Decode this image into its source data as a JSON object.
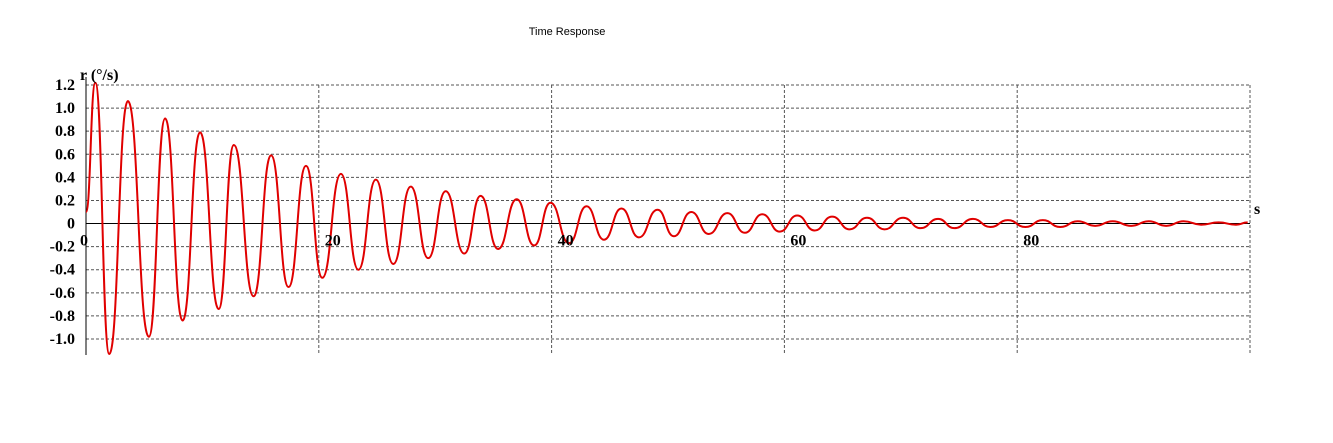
{
  "chart_data": {
    "type": "line",
    "title": "Time Response",
    "xlabel": "s",
    "ylabel": "r (°/s)",
    "xlim": [
      0,
      100
    ],
    "ylim": [
      -1.1,
      1.2
    ],
    "xticks": [
      "0",
      "20",
      "40",
      "60",
      "80"
    ],
    "xtick_values": [
      0,
      20,
      40,
      60,
      80
    ],
    "yticks": [
      "1.2",
      "1.0",
      "0.8",
      "0.6",
      "0.4",
      "0.2",
      "0",
      "-0.2",
      "-0.4",
      "-0.6",
      "-0.8",
      "-1.0"
    ],
    "ytick_values": [
      1.2,
      1.0,
      0.8,
      0.6,
      0.4,
      0.2,
      0,
      -0.2,
      -0.4,
      -0.6,
      -0.8,
      -1.0
    ],
    "grid": true,
    "series": [
      {
        "color": "#e00000",
        "x": [
          0,
          0.8,
          2.0,
          3.6,
          5.4,
          6.8,
          8.3,
          9.8,
          11.4,
          12.7,
          14.4,
          15.9,
          17.4,
          18.9,
          20.3,
          21.9,
          23.4,
          24.9,
          26.4,
          27.9,
          29.4,
          30.9,
          32.5,
          33.9,
          35.4,
          37.0,
          38.5,
          39.9,
          41.5,
          43.0,
          44.5,
          46.0,
          47.5,
          49.1,
          50.5,
          52.0,
          53.5,
          55.1,
          56.6,
          58.1,
          59.6,
          61.1,
          62.6,
          64.1,
          65.6,
          67.1,
          68.6,
          70.2,
          71.7,
          73.2,
          74.6,
          76.2,
          77.7,
          79.2,
          80.7,
          82.2,
          83.7,
          85.2,
          86.7,
          88.2,
          89.8,
          91.3,
          92.8,
          94.3,
          95.8,
          97.3,
          98.8,
          99.8
        ],
        "y": [
          0.1,
          1.22,
          -1.13,
          1.06,
          -0.98,
          0.91,
          -0.84,
          0.79,
          -0.74,
          0.68,
          -0.63,
          0.59,
          -0.55,
          0.5,
          -0.47,
          0.43,
          -0.4,
          0.38,
          -0.35,
          0.32,
          -0.3,
          0.28,
          -0.26,
          0.24,
          -0.22,
          0.21,
          -0.19,
          0.18,
          -0.17,
          0.15,
          -0.14,
          0.13,
          -0.12,
          0.12,
          -0.11,
          0.1,
          -0.09,
          0.09,
          -0.08,
          0.08,
          -0.07,
          0.07,
          -0.06,
          0.06,
          -0.05,
          0.05,
          -0.05,
          0.05,
          -0.04,
          0.04,
          -0.04,
          0.04,
          -0.03,
          0.03,
          -0.03,
          0.03,
          -0.03,
          0.02,
          -0.02,
          0.02,
          -0.02,
          0.02,
          -0.02,
          0.02,
          -0.01,
          0.01,
          -0.01,
          0.01
        ]
      }
    ]
  }
}
